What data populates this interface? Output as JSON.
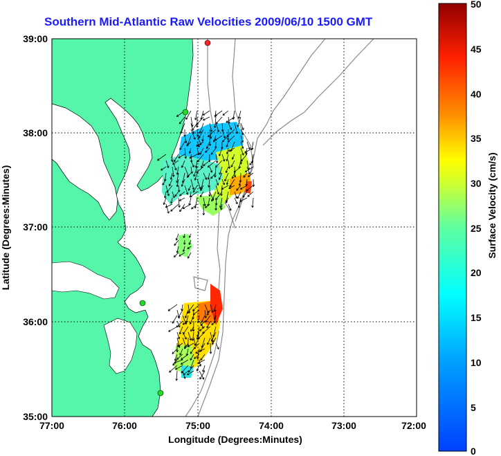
{
  "title": "Southern Mid-Atlantic Raw Velocities 2009/06/10 1500 GMT",
  "map": {
    "xlabel": "Longitude (Degrees:Minutes)",
    "ylabel": "Latitude (Degrees:Minutes)",
    "x_ticks": [
      "77:00",
      "76:00",
      "75:00",
      "74:00",
      "73:00",
      "72:00"
    ],
    "y_ticks": [
      "39:00",
      "38:00",
      "37:00",
      "36:00",
      "35:00"
    ],
    "land_color": "#55f5aa",
    "grid": "dotted"
  },
  "colorbar": {
    "label": "Surface Velocity (cm/s)",
    "min": 0,
    "max": 50,
    "ticks": [
      "50",
      "45",
      "40",
      "35",
      "30",
      "25",
      "20",
      "15",
      "10",
      "5",
      "0"
    ],
    "colormap": "jet"
  },
  "stations": [
    {
      "color": "#ff2020"
    },
    {
      "color": "#22dd22"
    },
    {
      "color": "#22dd22"
    },
    {
      "color": "#22dd22"
    }
  ]
}
